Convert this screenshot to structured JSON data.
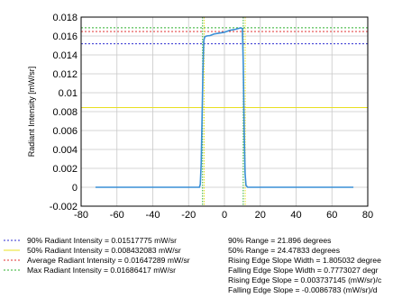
{
  "chart_data": {
    "type": "line",
    "xlim": [
      -80,
      80
    ],
    "ylim": [
      -0.002,
      0.018
    ],
    "x_ticks": [
      "-80",
      "-60",
      "-40",
      "-20",
      "0",
      "20",
      "40",
      "60",
      "80"
    ],
    "y_ticks": [
      "-0.002",
      "0",
      "0.002",
      "0.004",
      "0.006",
      "0.008",
      "0.01",
      "0.012",
      "0.014",
      "0.016",
      "0.018"
    ],
    "ylabel": "Radiant Intensity [mW/sr]",
    "grid": true,
    "series": [
      {
        "color": "#3a8fd6",
        "points": [
          [
            -72,
            0
          ],
          [
            -60,
            0
          ],
          [
            -40,
            0
          ],
          [
            -20,
            0
          ],
          [
            -14,
            0
          ],
          [
            -13.5,
            0.0003
          ],
          [
            -13,
            0.0025
          ],
          [
            -12.5,
            0.0075
          ],
          [
            -12,
            0.0125
          ],
          [
            -11.5,
            0.0155
          ],
          [
            -11,
            0.0159
          ],
          [
            -10,
            0.016
          ],
          [
            -8,
            0.01605
          ],
          [
            -6,
            0.0162
          ],
          [
            -3,
            0.0163
          ],
          [
            0,
            0.0164
          ],
          [
            3,
            0.0166
          ],
          [
            6,
            0.0167
          ],
          [
            9,
            0.01686
          ],
          [
            10,
            0.0168
          ],
          [
            10.5,
            0.013
          ],
          [
            11,
            0.006
          ],
          [
            11.5,
            0.0015
          ],
          [
            12,
            0.0002
          ],
          [
            13,
            0
          ],
          [
            20,
            0
          ],
          [
            40,
            0
          ],
          [
            60,
            0
          ],
          [
            72,
            0
          ]
        ]
      }
    ],
    "reference_lines": [
      {
        "value": 0.01517775,
        "color": "#2f2fd0",
        "dash": "2,2"
      },
      {
        "value": 0.008432083,
        "color": "#e8e020",
        "dash": "none"
      },
      {
        "value": 0.01647289,
        "color": "#e03030",
        "dash": "2,2"
      },
      {
        "value": 0.01686417,
        "color": "#2fb02f",
        "dash": "2,2"
      }
    ],
    "vertical_markers": [
      {
        "x": -12.2,
        "color": "#2fb02f"
      },
      {
        "x": -11.3,
        "color": "#e8e020"
      },
      {
        "x": 10.5,
        "color": "#2fb02f"
      },
      {
        "x": 11.6,
        "color": "#e8e020"
      }
    ],
    "legend_left": [
      {
        "text": "90% Radiant Intensity = 0.01517775 mW/sr",
        "color": "#2f2fd0",
        "dash": "2,2"
      },
      {
        "text": "50% Radiant Intensity = 0.008432083 mW/sr",
        "color": "#e8e020",
        "dash": "none"
      },
      {
        "text": "Average Radiant Intensity = 0.01647289 mW/sr",
        "color": "#e03030",
        "dash": "2,2"
      },
      {
        "text": "Max Radiant Intensity = 0.01686417 mW/sr",
        "color": "#2fb02f",
        "dash": "2,2"
      }
    ],
    "legend_right": [
      "90% Range = 21.896 degrees",
      "50% Range = 24.47833 degrees",
      "Rising Edge Slope Width = 1.805032 degree",
      "Falling Edge Slope Width = 0.7773027 degr",
      "Rising Edge Slope = 0.003737145 (mW/sr)/c",
      "Falling Edge Slope = -0.0086783 (mW/sr)/d"
    ]
  }
}
